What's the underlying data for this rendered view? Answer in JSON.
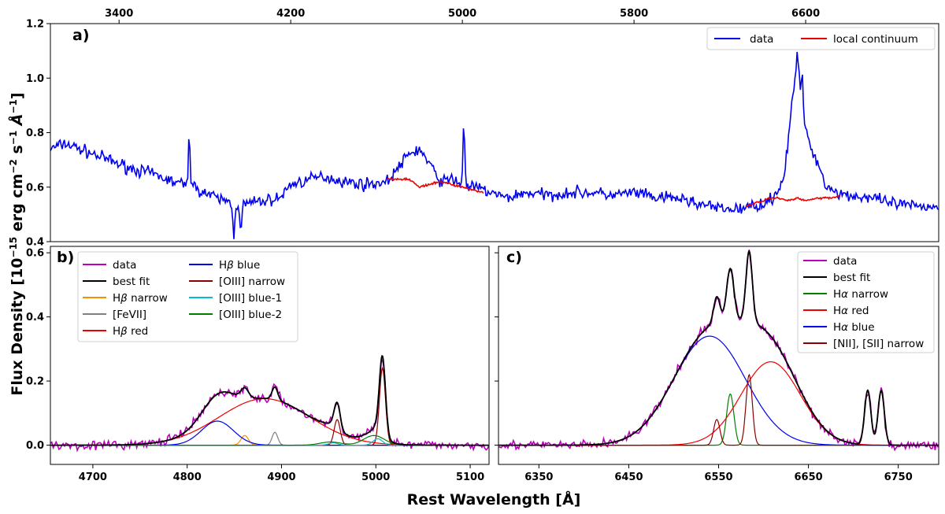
{
  "figure": {
    "ylabel_main": "Flux Density [10",
    "ylabel_exp": "−15",
    "ylabel_unit": " erg cm",
    "ylabel_cm_exp": "−2",
    "ylabel_s": " s",
    "ylabel_s_exp": "−1",
    "ylabel_A": " Å",
    "ylabel_A_exp": "−1",
    "ylabel_close": "]",
    "xlabel": "Rest Wavelength [Å]"
  },
  "chart_data": [
    {
      "id": "a",
      "panel_label": "a)",
      "type": "line",
      "xlim": [
        3080,
        7220
      ],
      "ylim": [
        0.4,
        1.2
      ],
      "top_axis_ticks": [
        3400,
        4200,
        5000,
        5800,
        6600
      ],
      "top_axis_tick_labels": [
        "3400",
        "4200",
        "5000",
        "5800",
        "6600"
      ],
      "yticks": [
        0.4,
        0.6,
        0.8,
        1.0,
        1.2
      ],
      "ytick_labels": [
        "0.4",
        "0.6",
        "0.8",
        "1.0",
        "1.2"
      ],
      "legend": [
        "data",
        "local continuum"
      ],
      "legend_position": "top-right",
      "series": [
        {
          "name": "data",
          "color": "#0000ee",
          "x": [
            3080,
            3150,
            3250,
            3350,
            3450,
            3550,
            3650,
            3750,
            3850,
            3900,
            3950,
            4000,
            4080,
            4150,
            4200,
            4250,
            4350,
            4450,
            4550,
            4650,
            4750,
            4800,
            4850,
            4900,
            4950,
            5000,
            5100,
            5200,
            5300,
            5400,
            5500,
            5600,
            5700,
            5800,
            5900,
            6000,
            6100,
            6200,
            6300,
            6400,
            6450,
            6500,
            6540,
            6560,
            6600,
            6650,
            6700,
            6750,
            6800,
            6900,
            7000,
            7100,
            7200
          ],
          "values": [
            0.74,
            0.76,
            0.73,
            0.7,
            0.67,
            0.65,
            0.62,
            0.6,
            0.56,
            0.55,
            0.53,
            0.54,
            0.55,
            0.56,
            0.61,
            0.62,
            0.64,
            0.62,
            0.61,
            0.62,
            0.72,
            0.74,
            0.68,
            0.62,
            0.63,
            0.61,
            0.59,
            0.56,
            0.58,
            0.57,
            0.58,
            0.58,
            0.57,
            0.58,
            0.56,
            0.56,
            0.54,
            0.52,
            0.52,
            0.54,
            0.56,
            0.64,
            0.93,
            1.04,
            0.8,
            0.7,
            0.6,
            0.58,
            0.57,
            0.56,
            0.54,
            0.53,
            0.53
          ],
          "spikes": [
            {
              "x": 3727,
              "value": 0.81
            },
            {
              "x": 5007,
              "value": 0.84
            },
            {
              "x": 6563,
              "value": 1.09
            },
            {
              "x": 6584,
              "value": 1.03
            }
          ],
          "dips": [
            {
              "x": 3934,
              "value": 0.42
            },
            {
              "x": 3968,
              "value": 0.43
            }
          ]
        },
        {
          "name": "local continuum",
          "color": "#ee0000",
          "segments": [
            {
              "x": [
                4650,
                4700,
                4750,
                4800,
                4850,
                4900,
                4950,
                5000,
                5050,
                5100
              ],
              "values": [
                0.63,
                0.63,
                0.63,
                0.6,
                0.61,
                0.62,
                0.61,
                0.6,
                0.59,
                0.58
              ]
            },
            {
              "x": [
                6320,
                6360,
                6400,
                6440,
                6480,
                6520,
                6560,
                6600,
                6640,
                6680,
                6720,
                6760
              ],
              "values": [
                0.53,
                0.54,
                0.55,
                0.56,
                0.56,
                0.55,
                0.56,
                0.55,
                0.56,
                0.56,
                0.56,
                0.57
              ]
            }
          ]
        }
      ]
    },
    {
      "id": "b",
      "panel_label": "b)",
      "type": "line",
      "xlim": [
        4655,
        5120
      ],
      "ylim": [
        -0.06,
        0.62
      ],
      "xticks": [
        4700,
        4800,
        4900,
        5000,
        5100
      ],
      "xtick_labels": [
        "4700",
        "4800",
        "4900",
        "5000",
        "5100"
      ],
      "yticks": [
        0.0,
        0.2,
        0.4,
        0.6
      ],
      "ytick_labels": [
        "0.0",
        "0.2",
        "0.4",
        "0.6"
      ],
      "legend_position": "top-left",
      "components": [
        {
          "name": "Hβ narrow",
          "color": "#ff8c00",
          "gaussians": [
            [
              0.03,
              4861,
              4
            ]
          ]
        },
        {
          "name": "[FeVII]",
          "color": "#808080",
          "gaussians": [
            [
              0.04,
              4893,
              3
            ]
          ]
        },
        {
          "name": "Hβ red",
          "color": "#ee0000",
          "gaussians": [
            [
              0.145,
              4882,
              48
            ]
          ]
        },
        {
          "name": "Hβ blue",
          "color": "#0000ee",
          "gaussians": [
            [
              0.075,
              4832,
              17
            ]
          ]
        },
        {
          "name": "[OIII] narrow",
          "color": "#8b0000",
          "gaussians": [
            [
              0.08,
              4959,
              3.2
            ],
            [
              0.24,
              5007,
              3.2
            ]
          ]
        },
        {
          "name": "[OIII] blue-1",
          "color": "#00bcd4",
          "gaussians": [
            [
              0.007,
              4955,
              5
            ],
            [
              0.02,
              5002,
              5
            ]
          ]
        },
        {
          "name": "[OIII] blue-2",
          "color": "#008000",
          "gaussians": [
            [
              0.01,
              4952,
              11
            ],
            [
              0.03,
              4998,
              11
            ]
          ]
        }
      ],
      "data_series": {
        "name": "data",
        "color": "#bb00bb"
      },
      "best_fit": {
        "name": "best fit",
        "color": "#000000"
      },
      "legend": [
        "data",
        "best fit",
        "Hβ narrow",
        "[FeVII]",
        "Hβ red",
        "Hβ blue",
        "[OIII] narrow",
        "[OIII] blue-1",
        "[OIII] blue-2"
      ],
      "legend_entries": [
        {
          "sym": "H",
          "greek": "β",
          "rest": " narrow"
        },
        {
          "sym": "H",
          "greek": "β",
          "rest": " red"
        },
        {
          "sym": "H",
          "greek": "β",
          "rest": " blue"
        }
      ]
    },
    {
      "id": "c",
      "panel_label": "c)",
      "type": "line",
      "xlim": [
        6305,
        6795
      ],
      "ylim": [
        -0.06,
        0.62
      ],
      "xticks": [
        6350,
        6450,
        6550,
        6650,
        6750
      ],
      "xtick_labels": [
        "6350",
        "6450",
        "6550",
        "6650",
        "6750"
      ],
      "legend_position": "top-right",
      "components": [
        {
          "name": "Hα narrow",
          "color": "#008000",
          "gaussians": [
            [
              0.16,
              6563,
              4
            ]
          ]
        },
        {
          "name": "Hα red",
          "color": "#ee0000",
          "gaussians": [
            [
              0.26,
              6608,
              33
            ]
          ]
        },
        {
          "name": "Hα blue",
          "color": "#0000ee",
          "gaussians": [
            [
              0.34,
              6540,
              40
            ]
          ]
        },
        {
          "name": "[NII], [SII] narrow",
          "color": "#8b0000",
          "gaussians": [
            [
              0.08,
              6548,
              3.5
            ],
            [
              0.22,
              6584,
              3.5
            ],
            [
              0.17,
              6716,
              3.5
            ],
            [
              0.17,
              6731,
              3.5
            ]
          ]
        }
      ],
      "data_series": {
        "name": "data",
        "color": "#bb00bb"
      },
      "best_fit": {
        "name": "best fit",
        "color": "#000000"
      },
      "legend": [
        "data",
        "best fit",
        "Hα narrow",
        "Hα red",
        "Hα blue",
        "[NII], [SII] narrow"
      ],
      "legend_entries": [
        {
          "sym": "H",
          "greek": "α",
          "rest": " narrow"
        },
        {
          "sym": "H",
          "greek": "α",
          "rest": " red"
        },
        {
          "sym": "H",
          "greek": "α",
          "rest": " blue"
        }
      ]
    }
  ]
}
